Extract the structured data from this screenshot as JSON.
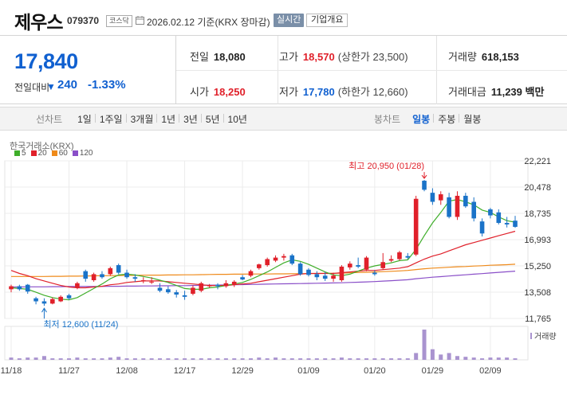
{
  "header": {
    "company_name": "제우스",
    "stock_code": "079370",
    "market_badge": "코스닥",
    "date_text": "2026.02.12 기준(KRX 장마감)",
    "realtime_button": "실시간",
    "company_info_button": "기업개요"
  },
  "quote": {
    "current_price": "17,840",
    "change_label": "전일대비",
    "change_direction": "down",
    "change_value": "240",
    "change_percent": "-1.33%",
    "prev_close_label": "전일",
    "prev_close": "18,080",
    "high_label": "고가",
    "high": "18,570",
    "upper_limit": "(상한가 23,500)",
    "volume_label": "거래량",
    "volume": "618,153",
    "open_label": "시가",
    "open": "18,250",
    "low_label": "저가",
    "low": "17,780",
    "lower_limit": "(하한가 12,660)",
    "value_label": "거래대금",
    "value": "11,239 백만"
  },
  "tabs": {
    "line_chart_title": "선차트",
    "line_periods": [
      "1일",
      "1주일",
      "3개월",
      "1년",
      "3년",
      "5년",
      "10년"
    ],
    "candle_chart_title": "봉차트",
    "candle_periods": [
      "일봉",
      "주봉",
      "월봉"
    ],
    "active_candle_period": "일봉"
  },
  "colors": {
    "up": "#e0202a",
    "down": "#1a73c8",
    "ma5": "#3fae2a",
    "ma20": "#e0202a",
    "ma60": "#ef8a1a",
    "ma120": "#8a4fc8",
    "volume": "#a993cf"
  },
  "legend": {
    "source": "한국거래소(KRX)",
    "items": [
      {
        "label": "5",
        "color": "#3fae2a"
      },
      {
        "label": "20",
        "color": "#e0202a"
      },
      {
        "label": "60",
        "color": "#ef8a1a"
      },
      {
        "label": "120",
        "color": "#8a4fc8"
      }
    ]
  },
  "chart_data": {
    "type": "candlestick",
    "y_ticks": [
      "22,221",
      "20,478",
      "18,735",
      "16,993",
      "15,250",
      "13,508",
      "11,765"
    ],
    "ylim": [
      11765,
      22221
    ],
    "x_ticks": [
      "11/18",
      "11/27",
      "12/08",
      "12/17",
      "12/29",
      "01/09",
      "01/20",
      "01/29",
      "02/09"
    ],
    "x_tick_index": [
      0,
      7,
      14,
      21,
      28,
      36,
      44,
      51,
      58
    ],
    "max_annotation": "최고 20,950 (01/28)",
    "max_index": 50,
    "max_value": 20950,
    "min_annotation": "최저 12,600 (11/24)",
    "min_index": 4,
    "min_value": 12600,
    "volume_label": "거래량",
    "candles": [
      {
        "o": 13700,
        "h": 14000,
        "l": 13500,
        "c": 13900
      },
      {
        "o": 13900,
        "h": 14000,
        "l": 13600,
        "c": 13700
      },
      {
        "o": 14000,
        "h": 14050,
        "l": 13400,
        "c": 13550
      },
      {
        "o": 13100,
        "h": 13200,
        "l": 12700,
        "c": 12900
      },
      {
        "o": 12900,
        "h": 13100,
        "l": 12600,
        "c": 12750
      },
      {
        "o": 12750,
        "h": 13150,
        "l": 12700,
        "c": 13050
      },
      {
        "o": 12900,
        "h": 13300,
        "l": 12850,
        "c": 13200
      },
      {
        "o": 13300,
        "h": 13400,
        "l": 13000,
        "c": 13100
      },
      {
        "o": 13800,
        "h": 14200,
        "l": 13700,
        "c": 14100
      },
      {
        "o": 14900,
        "h": 15000,
        "l": 14200,
        "c": 14400
      },
      {
        "o": 14300,
        "h": 14800,
        "l": 14200,
        "c": 14700
      },
      {
        "o": 14700,
        "h": 14900,
        "l": 14400,
        "c": 14500
      },
      {
        "o": 14700,
        "h": 15200,
        "l": 14600,
        "c": 15100
      },
      {
        "o": 15300,
        "h": 15400,
        "l": 14700,
        "c": 14800
      },
      {
        "o": 14800,
        "h": 15000,
        "l": 14400,
        "c": 14500
      },
      {
        "o": 14500,
        "h": 14700,
        "l": 14200,
        "c": 14400
      },
      {
        "o": 14300,
        "h": 14500,
        "l": 14100,
        "c": 14300
      },
      {
        "o": 14200,
        "h": 14500,
        "l": 14050,
        "c": 14200
      },
      {
        "o": 13800,
        "h": 14100,
        "l": 13500,
        "c": 13600
      },
      {
        "o": 13700,
        "h": 13900,
        "l": 13400,
        "c": 13500
      },
      {
        "o": 13500,
        "h": 13650,
        "l": 13150,
        "c": 13350
      },
      {
        "o": 13300,
        "h": 13600,
        "l": 13000,
        "c": 13200
      },
      {
        "o": 13400,
        "h": 13950,
        "l": 13300,
        "c": 13800
      },
      {
        "o": 13600,
        "h": 14200,
        "l": 13500,
        "c": 14100
      },
      {
        "o": 13900,
        "h": 14050,
        "l": 13800,
        "c": 13950
      },
      {
        "o": 14000,
        "h": 14100,
        "l": 13700,
        "c": 13900
      },
      {
        "o": 13900,
        "h": 14300,
        "l": 13800,
        "c": 14100
      },
      {
        "o": 14000,
        "h": 14300,
        "l": 13850,
        "c": 14200
      },
      {
        "o": 14500,
        "h": 14650,
        "l": 14300,
        "c": 14350
      },
      {
        "o": 14600,
        "h": 15000,
        "l": 14500,
        "c": 14900
      },
      {
        "o": 15100,
        "h": 15400,
        "l": 15000,
        "c": 15350
      },
      {
        "o": 15300,
        "h": 15800,
        "l": 15200,
        "c": 15700
      },
      {
        "o": 15600,
        "h": 15950,
        "l": 15500,
        "c": 15800
      },
      {
        "o": 15800,
        "h": 16050,
        "l": 15600,
        "c": 15900
      },
      {
        "o": 15950,
        "h": 16050,
        "l": 15300,
        "c": 15400
      },
      {
        "o": 15400,
        "h": 15500,
        "l": 14600,
        "c": 14700
      },
      {
        "o": 15000,
        "h": 15100,
        "l": 14550,
        "c": 14650
      },
      {
        "o": 14700,
        "h": 14900,
        "l": 14300,
        "c": 14500
      },
      {
        "o": 14600,
        "h": 14850,
        "l": 14250,
        "c": 14400
      },
      {
        "o": 14400,
        "h": 14800,
        "l": 14200,
        "c": 14600
      },
      {
        "o": 14300,
        "h": 15300,
        "l": 14200,
        "c": 15200
      },
      {
        "o": 15150,
        "h": 15550,
        "l": 15000,
        "c": 15400
      },
      {
        "o": 15300,
        "h": 15800,
        "l": 15100,
        "c": 15200
      },
      {
        "o": 15000,
        "h": 15900,
        "l": 14900,
        "c": 15800
      },
      {
        "o": 14800,
        "h": 14950,
        "l": 14600,
        "c": 14700
      },
      {
        "o": 15100,
        "h": 16100,
        "l": 15000,
        "c": 15500
      },
      {
        "o": 15600,
        "h": 15950,
        "l": 15500,
        "c": 15700
      },
      {
        "o": 15700,
        "h": 16250,
        "l": 15600,
        "c": 16150
      },
      {
        "o": 15900,
        "h": 16100,
        "l": 15700,
        "c": 15800
      },
      {
        "o": 16000,
        "h": 19900,
        "l": 15900,
        "c": 19700
      },
      {
        "o": 20900,
        "h": 20950,
        "l": 20200,
        "c": 20300
      },
      {
        "o": 20100,
        "h": 20400,
        "l": 19300,
        "c": 19500
      },
      {
        "o": 19600,
        "h": 20200,
        "l": 19300,
        "c": 20000
      },
      {
        "o": 19800,
        "h": 20100,
        "l": 18400,
        "c": 18500
      },
      {
        "o": 18500,
        "h": 20200,
        "l": 18300,
        "c": 19900
      },
      {
        "o": 19900,
        "h": 20100,
        "l": 19100,
        "c": 19200
      },
      {
        "o": 19500,
        "h": 19800,
        "l": 18200,
        "c": 18400
      },
      {
        "o": 18200,
        "h": 18400,
        "l": 17200,
        "c": 17400
      },
      {
        "o": 19000,
        "h": 19100,
        "l": 18400,
        "c": 18600
      },
      {
        "o": 18800,
        "h": 19000,
        "l": 18000,
        "c": 18100
      },
      {
        "o": 18100,
        "h": 18500,
        "l": 17800,
        "c": 18000
      },
      {
        "o": 18250,
        "h": 18570,
        "l": 17780,
        "c": 17840
      }
    ],
    "ma5": [
      13800,
      13750,
      13700,
      13500,
      13300,
      13150,
      13050,
      13000,
      13150,
      13450,
      13750,
      14050,
      14400,
      14650,
      14700,
      14650,
      14550,
      14450,
      14300,
      14150,
      13950,
      13750,
      13700,
      13700,
      13800,
      13850,
      13950,
      14050,
      14150,
      14350,
      14600,
      14850,
      15150,
      15450,
      15650,
      15550,
      15350,
      15100,
      14850,
      14650,
      14600,
      14700,
      14900,
      15100,
      15250,
      15350,
      15450,
      15600,
      15650,
      16350,
      17250,
      18100,
      18800,
      19550,
      19650,
      19500,
      19300,
      18950,
      18800,
      18500,
      18250,
      18150
    ],
    "ma20": [
      14950,
      14750,
      14600,
      14400,
      14250,
      14100,
      13950,
      13850,
      13800,
      13800,
      13850,
      13900,
      14000,
      14050,
      14150,
      14200,
      14250,
      14250,
      14250,
      14200,
      14150,
      14100,
      14050,
      14000,
      13950,
      13950,
      13950,
      14000,
      14050,
      14100,
      14200,
      14300,
      14400,
      14500,
      14600,
      14700,
      14750,
      14750,
      14750,
      14750,
      14800,
      14850,
      14900,
      14950,
      14950,
      15000,
      15050,
      15100,
      15200,
      15450,
      15700,
      15900,
      16050,
      16250,
      16450,
      16650,
      16800,
      16950,
      17100,
      17250,
      17400,
      17550
    ],
    "ma60": [
      14550,
      14550,
      14550,
      14550,
      14550,
      14560,
      14560,
      14570,
      14570,
      14580,
      14590,
      14600,
      14600,
      14610,
      14620,
      14620,
      14630,
      14640,
      14640,
      14650,
      14650,
      14660,
      14660,
      14670,
      14680,
      14690,
      14690,
      14700,
      14700,
      14710,
      14710,
      14710,
      14720,
      14720,
      14730,
      14740,
      14740,
      14750,
      14760,
      14760,
      14770,
      14790,
      14810,
      14830,
      14850,
      14870,
      14890,
      14920,
      14950,
      15010,
      15060,
      15100,
      15130,
      15160,
      15190,
      15210,
      15240,
      15260,
      15290,
      15310,
      15330,
      15360
    ],
    "ma120": [
      13850,
      13850,
      13860,
      13860,
      13860,
      13870,
      13870,
      13880,
      13880,
      13880,
      13890,
      13890,
      13900,
      13900,
      13910,
      13910,
      13920,
      13920,
      13930,
      13930,
      13940,
      13940,
      13950,
      13960,
      13970,
      13980,
      13990,
      14000,
      14010,
      14020,
      14030,
      14040,
      14050,
      14060,
      14070,
      14080,
      14090,
      14100,
      14110,
      14120,
      14130,
      14150,
      14170,
      14190,
      14210,
      14240,
      14270,
      14300,
      14330,
      14400,
      14450,
      14500,
      14540,
      14580,
      14620,
      14660,
      14700,
      14740,
      14780,
      14820,
      14860,
      14900
    ],
    "volume": [
      3,
      2,
      3,
      3,
      5,
      2,
      2,
      2,
      3,
      2,
      2,
      2,
      3,
      4,
      2,
      2,
      2,
      2,
      2,
      2,
      2,
      2,
      2,
      2,
      2,
      2,
      2,
      2,
      2,
      2,
      3,
      2,
      3,
      2,
      2,
      2,
      2,
      2,
      2,
      2,
      3,
      2,
      2,
      2,
      2,
      2,
      2,
      2,
      2,
      9,
      40,
      14,
      7,
      9,
      5,
      4,
      3,
      2,
      3,
      3,
      3,
      2
    ]
  }
}
